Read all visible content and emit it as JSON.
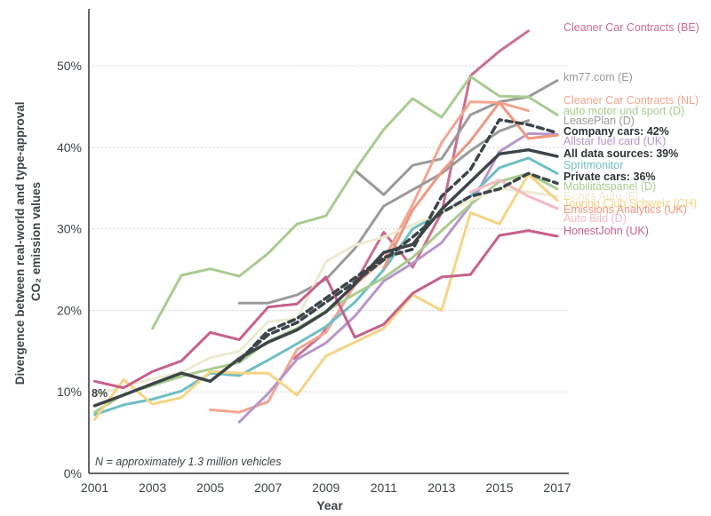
{
  "chart_data": {
    "type": "line",
    "title": "",
    "xlabel": "Year",
    "ylabel": "Divergence between real-world and type-approval CO₂ emission values",
    "ylabel_lines": [
      "Divergence between real-world and type-approval",
      "CO₂ emission values"
    ],
    "xlim": [
      2000.8,
      2017.4
    ],
    "ylim": [
      0,
      0.57
    ],
    "xticks": [
      2001,
      2003,
      2005,
      2007,
      2009,
      2011,
      2013,
      2015,
      2017
    ],
    "xtick_labels": [
      "2001",
      "2003",
      "2005",
      "2007",
      "2009",
      "2011",
      "2013",
      "2015",
      "2017"
    ],
    "yticks": [
      0,
      0.1,
      0.2,
      0.3,
      0.4,
      0.5
    ],
    "ytick_labels": [
      "0%",
      "10%",
      "20%",
      "30%",
      "40%",
      "50%"
    ],
    "grid": "horizontal-dotted",
    "start_label": "8%",
    "footnote": "N = approximately 1.3 million vehicles",
    "series": [
      {
        "name": "Cleaner Car Contracts (BE)",
        "label": "Cleaner Car Contracts (BE)",
        "color": "#cc6e8e",
        "width": 3,
        "dash": "",
        "bold": false,
        "x": [
          2007.9,
          2008.8,
          2009.4,
          2010,
          2011,
          2012,
          2013,
          2014,
          2015,
          2016
        ],
        "y": [
          0.141,
          0.168,
          0.196,
          0.233,
          0.296,
          0.253,
          0.32,
          0.488,
          0.518,
          0.543
        ]
      },
      {
        "name": "km77.com (E)",
        "label": "km77.com (E)",
        "color": "#9a9a9a",
        "width": 3,
        "dash": "",
        "bold": false,
        "x": [
          2010,
          2011,
          2012,
          2013,
          2014,
          2015,
          2016,
          2017
        ],
        "y": [
          0.372,
          0.342,
          0.378,
          0.386,
          0.44,
          0.456,
          0.462,
          0.482
        ]
      },
      {
        "name": "Cleaner Car Contracts (NL)",
        "label": "Cleaner Car Contracts (NL)",
        "color": "#f2a691",
        "width": 3,
        "dash": "",
        "bold": false,
        "x": [
          2005,
          2006,
          2007,
          2008,
          2009,
          2010,
          2011,
          2012,
          2013,
          2014,
          2015,
          2016
        ],
        "y": [
          0.078,
          0.075,
          0.088,
          0.152,
          0.173,
          0.231,
          0.262,
          0.33,
          0.406,
          0.456,
          0.455,
          0.445
        ]
      },
      {
        "name": "auto motor und sport (D)",
        "label": "auto motor und sport (D)",
        "color": "#a9cc91",
        "width": 3,
        "dash": "",
        "bold": false,
        "x": [
          2003,
          2004,
          2005,
          2006,
          2007,
          2008,
          2009,
          2010,
          2011,
          2012,
          2013,
          2014,
          2015,
          2016,
          2017
        ],
        "y": [
          0.178,
          0.243,
          0.251,
          0.242,
          0.27,
          0.306,
          0.316,
          0.372,
          0.422,
          0.46,
          0.437,
          0.487,
          0.463,
          0.462,
          0.44
        ]
      },
      {
        "name": "LeasePlan (D)",
        "label": "LeasePlan (D)",
        "color": "#9a9a9a",
        "width": 3,
        "dash": "",
        "bold": false,
        "x": [
          2006,
          2007,
          2008,
          2009,
          2010,
          2011,
          2012,
          2013,
          2014,
          2015,
          2016
        ],
        "y": [
          0.209,
          0.209,
          0.219,
          0.238,
          0.276,
          0.328,
          0.348,
          0.368,
          0.396,
          0.42,
          0.433
        ]
      },
      {
        "name": "Company cars",
        "label": "Company cars: 42%",
        "color": "#3d4548",
        "width": 3.5,
        "dash": "7 5",
        "bold": true,
        "x": [
          2006,
          2007,
          2008,
          2009,
          2010,
          2011,
          2012,
          2013,
          2014,
          2015,
          2016,
          2017
        ],
        "y": [
          0.138,
          0.175,
          0.19,
          0.215,
          0.24,
          0.265,
          0.275,
          0.34,
          0.373,
          0.434,
          0.428,
          0.418
        ]
      },
      {
        "name": "Allstar fuel card (UK)",
        "label": "Allstar fuel card (UK)",
        "color": "#b796cb",
        "width": 3,
        "dash": "",
        "bold": false,
        "x": [
          2006,
          2007,
          2008,
          2009,
          2010,
          2011,
          2012,
          2013,
          2014,
          2015,
          2016,
          2017
        ],
        "y": [
          0.063,
          0.098,
          0.14,
          0.16,
          0.193,
          0.236,
          0.258,
          0.283,
          0.329,
          0.395,
          0.417,
          0.416
        ]
      },
      {
        "name": "All data sources",
        "label": "All data sources: 39%",
        "color": "#3d4548",
        "width": 3.5,
        "dash": "",
        "bold": true,
        "x": [
          2001,
          2002,
          2003,
          2004,
          2005,
          2006,
          2007,
          2008,
          2009,
          2010,
          2011,
          2012,
          2013,
          2014,
          2015,
          2016,
          2017
        ],
        "y": [
          0.083,
          0.096,
          0.11,
          0.123,
          0.113,
          0.141,
          0.161,
          0.176,
          0.198,
          0.232,
          0.271,
          0.281,
          0.324,
          0.358,
          0.392,
          0.397,
          0.389
        ]
      },
      {
        "name": "Spritmonitor",
        "label": "Spritmonitor",
        "color": "#6fbfc3",
        "width": 3,
        "dash": "",
        "bold": false,
        "x": [
          2001,
          2002,
          2003,
          2004,
          2005,
          2006,
          2007,
          2008,
          2009,
          2010,
          2011,
          2012,
          2013,
          2014,
          2015,
          2016,
          2017
        ],
        "y": [
          0.072,
          0.084,
          0.091,
          0.101,
          0.123,
          0.12,
          0.139,
          0.159,
          0.18,
          0.21,
          0.25,
          0.3,
          0.32,
          0.34,
          0.375,
          0.387,
          0.368
        ]
      },
      {
        "name": "Private cars",
        "label": "Private cars: 36%",
        "color": "#3d4548",
        "width": 3.5,
        "dash": "7 5",
        "bold": true,
        "x": [
          2006,
          2007,
          2008,
          2009,
          2010,
          2011,
          2012,
          2013,
          2014,
          2015,
          2016,
          2017
        ],
        "y": [
          0.14,
          0.17,
          0.185,
          0.21,
          0.235,
          0.262,
          0.29,
          0.32,
          0.34,
          0.349,
          0.368,
          0.356
        ]
      },
      {
        "name": "Mobilitätspanel (D)",
        "label": "Mobilitätspanel (D)",
        "color": "#a9cc91",
        "width": 3,
        "dash": "",
        "bold": false,
        "x": [
          2001,
          2002,
          2003,
          2004,
          2005,
          2006,
          2007,
          2008,
          2009,
          2010,
          2011,
          2012,
          2013,
          2014,
          2015,
          2016,
          2017
        ],
        "y": [
          0.075,
          0.097,
          0.108,
          0.119,
          0.128,
          0.136,
          0.162,
          0.178,
          0.199,
          0.22,
          0.24,
          0.265,
          0.298,
          0.33,
          0.358,
          0.368,
          0.349
        ]
      },
      {
        "name": "Fiches Auto (F)",
        "label": "Fiches Auto (F)",
        "color": "#ecebd1",
        "width": 3,
        "dash": "",
        "bold": false,
        "x": [
          2001,
          2002,
          2003,
          2004,
          2005,
          2006,
          2007,
          2008,
          2009,
          2010,
          2011,
          2012,
          2013,
          2014,
          2015,
          2016,
          2017
        ],
        "y": [
          0.096,
          0.106,
          0.116,
          0.124,
          0.142,
          0.15,
          0.186,
          0.19,
          0.26,
          0.28,
          0.29,
          0.305,
          0.32,
          0.335,
          0.35,
          0.345,
          0.34
        ]
      },
      {
        "name": "Touring Club Schweiz (CH)",
        "label": "Touring Club Schweiz (CH)",
        "color": "#f6d484",
        "width": 3,
        "dash": "",
        "bold": false,
        "x": [
          2001,
          2002,
          2003,
          2004,
          2005,
          2006,
          2007,
          2008,
          2009,
          2010,
          2011,
          2012,
          2013,
          2014,
          2015,
          2016,
          2017
        ],
        "y": [
          0.066,
          0.115,
          0.085,
          0.093,
          0.125,
          0.123,
          0.123,
          0.096,
          0.144,
          0.161,
          0.178,
          0.219,
          0.2,
          0.32,
          0.306,
          0.367,
          0.335
        ]
      },
      {
        "name": "Emissions Analytics (UK)",
        "label": "Emissions Analytics (UK)",
        "color": "#ee9780",
        "width": 3,
        "dash": "",
        "bold": false,
        "x": [
          2011,
          2012,
          2013,
          2014,
          2015,
          2016,
          2017
        ],
        "y": [
          0.252,
          0.323,
          0.37,
          0.408,
          0.455,
          0.411,
          0.415
        ]
      },
      {
        "name": "Auto Bild (D)",
        "label": "Auto Bild (D)",
        "color": "#f4b9c2",
        "width": 3,
        "dash": "",
        "bold": false,
        "x": [
          2014,
          2015,
          2016,
          2017
        ],
        "y": [
          0.345,
          0.36,
          0.34,
          0.325
        ]
      },
      {
        "name": "HonestJohn (UK)",
        "label": "HonestJohn (UK)",
        "color": "#c6608b",
        "width": 3,
        "dash": "",
        "bold": false,
        "x": [
          2001,
          2002,
          2003,
          2004,
          2005,
          2006,
          2007,
          2008,
          2009,
          2010,
          2011,
          2012,
          2013,
          2014,
          2015,
          2016,
          2017
        ],
        "y": [
          0.113,
          0.105,
          0.125,
          0.138,
          0.173,
          0.164,
          0.204,
          0.208,
          0.241,
          0.167,
          0.183,
          0.221,
          0.241,
          0.244,
          0.292,
          0.298,
          0.291
        ]
      }
    ]
  }
}
